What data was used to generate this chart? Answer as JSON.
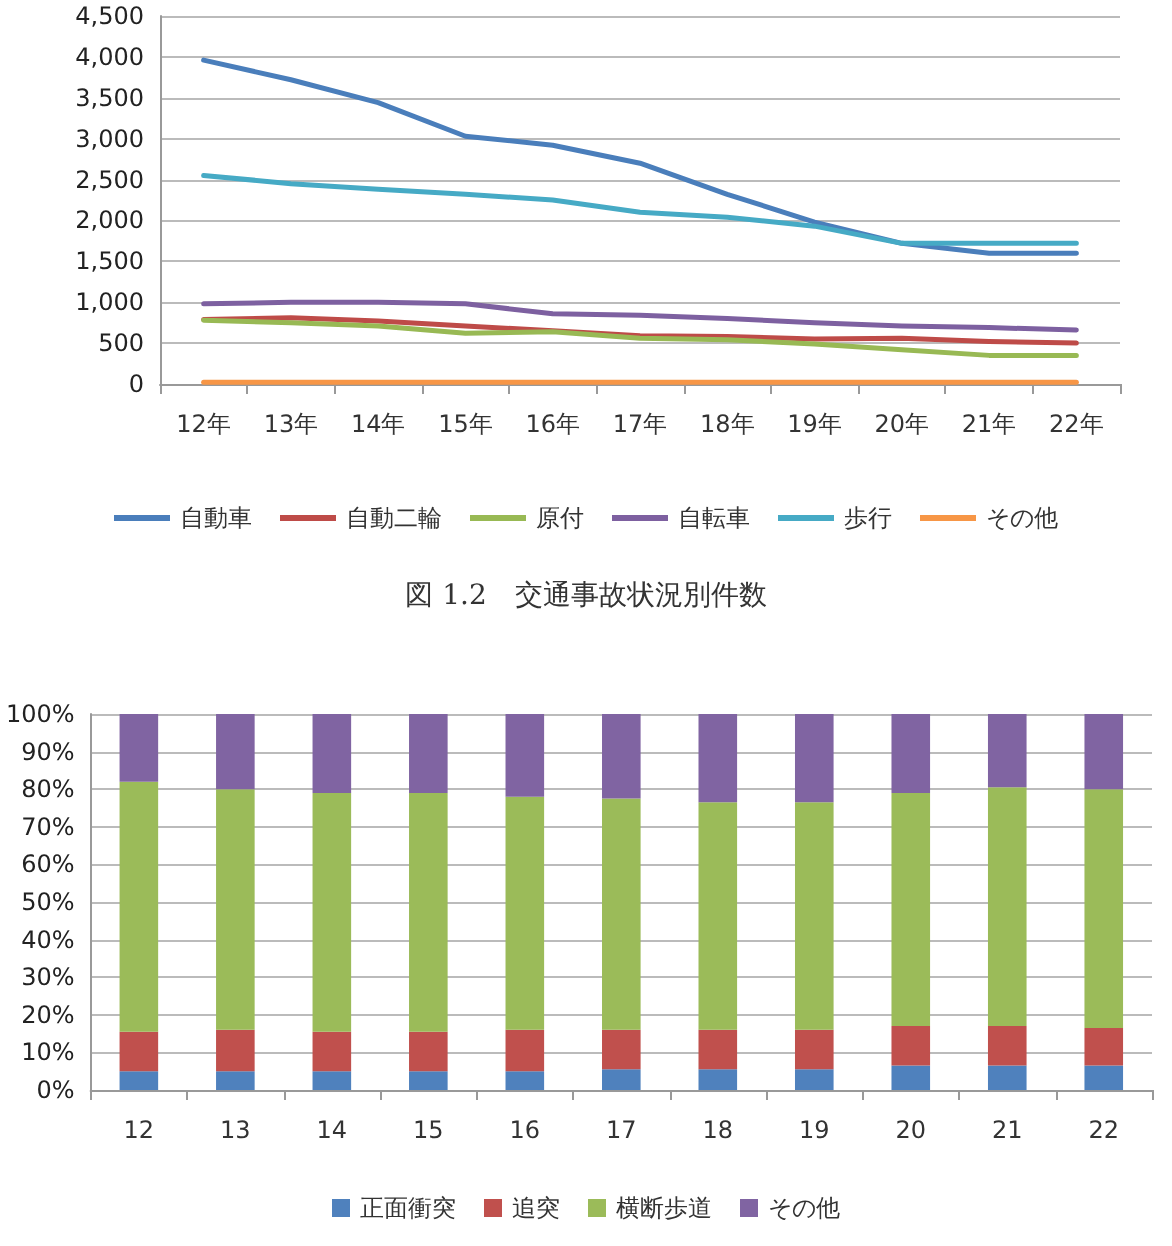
{
  "chart_data": [
    {
      "type": "line",
      "title": "図 1.2　交通事故状況別件数",
      "categories": [
        "12年",
        "13年",
        "14年",
        "15年",
        "16年",
        "17年",
        "18年",
        "19年",
        "20年",
        "21年",
        "22年"
      ],
      "series": [
        {
          "name": "自動車",
          "color": "#4a7ebb",
          "values": [
            3960,
            3720,
            3440,
            3030,
            2920,
            2700,
            2320,
            1980,
            1720,
            1600,
            1600
          ]
        },
        {
          "name": "自動二輪",
          "color": "#be4b48",
          "values": [
            790,
            810,
            770,
            710,
            650,
            590,
            580,
            550,
            560,
            520,
            500
          ]
        },
        {
          "name": "原付",
          "color": "#98b954",
          "values": [
            780,
            750,
            710,
            620,
            640,
            560,
            540,
            490,
            420,
            350,
            350
          ]
        },
        {
          "name": "自転車",
          "color": "#7d60a0",
          "values": [
            980,
            1000,
            1000,
            980,
            860,
            840,
            800,
            750,
            710,
            690,
            660
          ]
        },
        {
          "name": "歩行",
          "color": "#46aac5",
          "values": [
            2550,
            2450,
            2380,
            2320,
            2250,
            2100,
            2040,
            1930,
            1720,
            1720,
            1720
          ]
        },
        {
          "name": "その他",
          "color": "#f79646",
          "values": [
            20,
            20,
            20,
            20,
            20,
            20,
            20,
            20,
            20,
            20,
            20
          ]
        }
      ],
      "ylim": [
        0,
        4500
      ],
      "yticks": [
        0,
        {
          "value": 500,
          "label": "500"
        },
        {
          "value": 1000,
          "label": "1,000"
        },
        {
          "value": 1500,
          "label": "1,500"
        },
        {
          "value": 2000,
          "label": "2,000"
        },
        {
          "value": 2500,
          "label": "2,500"
        },
        {
          "value": 3000,
          "label": "3,000"
        },
        {
          "value": 3500,
          "label": "3,500"
        },
        {
          "value": 4000,
          "label": "4,000"
        },
        {
          "value": 4500,
          "label": "4,500"
        }
      ],
      "grid": "y",
      "legend": "bottom",
      "marker": "none",
      "line_style": "solid"
    },
    {
      "type": "bar",
      "stacked": true,
      "categories": [
        "12",
        "13",
        "14",
        "15",
        "16",
        "17",
        "18",
        "19",
        "20",
        "21",
        "22"
      ],
      "series": [
        {
          "name": "正面衝突",
          "color": "#4f81bd",
          "values": [
            5,
            5,
            5,
            5,
            5,
            5.5,
            5.5,
            5.5,
            6.5,
            6.5,
            6.5
          ]
        },
        {
          "name": "追突",
          "color": "#c0504d",
          "values": [
            10.5,
            11,
            10.5,
            10.5,
            11,
            10.5,
            10.5,
            10.5,
            10.5,
            10.5,
            10
          ]
        },
        {
          "name": "横断歩道",
          "color": "#9bbb59",
          "values": [
            66.5,
            64,
            63.5,
            63.5,
            62,
            61.5,
            60.5,
            60.5,
            62,
            63.5,
            63.5
          ]
        },
        {
          "name": "その他",
          "color": "#8064a2",
          "values": [
            18,
            20,
            21,
            21,
            22,
            22.5,
            23.5,
            23.5,
            21,
            19.5,
            20
          ]
        }
      ],
      "ylim": [
        0,
        100
      ],
      "yticks": [
        {
          "value": 0,
          "label": "0%"
        },
        {
          "value": 10,
          "label": "10%"
        },
        {
          "value": 20,
          "label": "20%"
        },
        {
          "value": 30,
          "label": "30%"
        },
        {
          "value": 40,
          "label": "40%"
        },
        {
          "value": 50,
          "label": "50%"
        },
        {
          "value": 60,
          "label": "60%"
        },
        {
          "value": 70,
          "label": "70%"
        },
        {
          "value": 80,
          "label": "80%"
        },
        {
          "value": 90,
          "label": "90%"
        },
        {
          "value": 100,
          "label": "100%"
        }
      ],
      "grid": "y",
      "legend": "bottom"
    }
  ]
}
